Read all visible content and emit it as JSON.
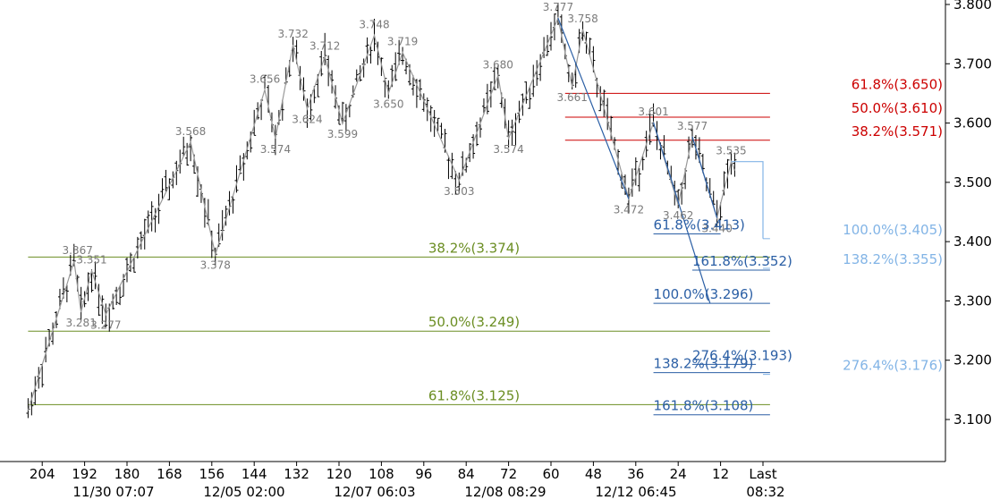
{
  "chart_data": {
    "type": "line",
    "title": "",
    "xlabel": "",
    "ylabel": "",
    "ylim": [
      3.02,
      3.82
    ],
    "y_ticks": [
      "3.100",
      "3.200",
      "3.300",
      "3.400",
      "3.500",
      "3.600",
      "3.700",
      "3.800"
    ],
    "x_ticks": [
      "204",
      "192",
      "180",
      "168",
      "156",
      "144",
      "132",
      "120",
      "108",
      "96",
      "84",
      "72",
      "60",
      "48",
      "36",
      "24",
      "12",
      "Last"
    ],
    "x_dates": [
      "11/30 07:07",
      "12/05 02:00",
      "12/07 06:03",
      "12/08 08:29",
      "12/12 06:45",
      "08:32"
    ],
    "bars_ago_range": [
      208,
      0
    ],
    "colors": {
      "bars": "#000000",
      "swing_line": "#999999",
      "olive": "#6b8e23",
      "red": "#cc0000",
      "blue": "#2b5fa5",
      "light_blue": "#82b4e6"
    },
    "zigzag": [
      {
        "bars_ago": 208,
        "price": 3.115
      },
      {
        "bars_ago": 195,
        "price": 3.367
      },
      {
        "bars_ago": 193,
        "price": 3.281
      },
      {
        "bars_ago": 190,
        "price": 3.351
      },
      {
        "bars_ago": 186,
        "price": 3.277
      },
      {
        "bars_ago": 162,
        "price": 3.568
      },
      {
        "bars_ago": 155,
        "price": 3.378
      },
      {
        "bars_ago": 141,
        "price": 3.656
      },
      {
        "bars_ago": 138,
        "price": 3.574
      },
      {
        "bars_ago": 133,
        "price": 3.732
      },
      {
        "bars_ago": 129,
        "price": 3.624
      },
      {
        "bars_ago": 124,
        "price": 3.712
      },
      {
        "bars_ago": 119,
        "price": 3.599
      },
      {
        "bars_ago": 110,
        "price": 3.748
      },
      {
        "bars_ago": 106,
        "price": 3.65
      },
      {
        "bars_ago": 102,
        "price": 3.719
      },
      {
        "bars_ago": 86,
        "price": 3.503
      },
      {
        "bars_ago": 75,
        "price": 3.68
      },
      {
        "bars_ago": 72,
        "price": 3.574
      },
      {
        "bars_ago": 58,
        "price": 3.777
      },
      {
        "bars_ago": 54,
        "price": 3.661
      },
      {
        "bars_ago": 51,
        "price": 3.758
      },
      {
        "bars_ago": 38,
        "price": 3.472
      },
      {
        "bars_ago": 31,
        "price": 3.601
      },
      {
        "bars_ago": 24,
        "price": 3.462
      },
      {
        "bars_ago": 20,
        "price": 3.577
      },
      {
        "bars_ago": 13,
        "price": 3.44
      },
      {
        "bars_ago": 9,
        "price": 3.535
      },
      {
        "bars_ago": 8,
        "price": 3.52
      }
    ],
    "swing_labels": [
      {
        "text": "3.367",
        "bars_ago": 194,
        "price": 3.367,
        "pos": "above"
      },
      {
        "text": "3.351",
        "bars_ago": 190,
        "price": 3.351,
        "pos": "above"
      },
      {
        "text": "3.281",
        "bars_ago": 193,
        "price": 3.281,
        "pos": "below"
      },
      {
        "text": "3.277",
        "bars_ago": 186,
        "price": 3.277,
        "pos": "below"
      },
      {
        "text": "3.568",
        "bars_ago": 162,
        "price": 3.568,
        "pos": "above"
      },
      {
        "text": "3.378",
        "bars_ago": 155,
        "price": 3.378,
        "pos": "below"
      },
      {
        "text": "3.656",
        "bars_ago": 141,
        "price": 3.656,
        "pos": "above"
      },
      {
        "text": "3.574",
        "bars_ago": 138,
        "price": 3.574,
        "pos": "below"
      },
      {
        "text": "3.732",
        "bars_ago": 133,
        "price": 3.732,
        "pos": "above"
      },
      {
        "text": "3.624",
        "bars_ago": 129,
        "price": 3.624,
        "pos": "below"
      },
      {
        "text": "3.712",
        "bars_ago": 124,
        "price": 3.712,
        "pos": "above"
      },
      {
        "text": "3.599",
        "bars_ago": 119,
        "price": 3.599,
        "pos": "below"
      },
      {
        "text": "3.748",
        "bars_ago": 110,
        "price": 3.748,
        "pos": "above"
      },
      {
        "text": "3.650",
        "bars_ago": 106,
        "price": 3.65,
        "pos": "below"
      },
      {
        "text": "3.719",
        "bars_ago": 102,
        "price": 3.719,
        "pos": "above"
      },
      {
        "text": "3.503",
        "bars_ago": 86,
        "price": 3.503,
        "pos": "below"
      },
      {
        "text": "3.680",
        "bars_ago": 75,
        "price": 3.68,
        "pos": "above"
      },
      {
        "text": "3.574",
        "bars_ago": 72,
        "price": 3.574,
        "pos": "below"
      },
      {
        "text": "3.777",
        "bars_ago": 58,
        "price": 3.777,
        "pos": "above"
      },
      {
        "text": "3.661",
        "bars_ago": 54,
        "price": 3.661,
        "pos": "below"
      },
      {
        "text": "3.758",
        "bars_ago": 51,
        "price": 3.758,
        "pos": "above"
      },
      {
        "text": "3.472",
        "bars_ago": 38,
        "price": 3.472,
        "pos": "below"
      },
      {
        "text": "3.601",
        "bars_ago": 31,
        "price": 3.601,
        "pos": "above"
      },
      {
        "text": "3.462",
        "bars_ago": 24,
        "price": 3.462,
        "pos": "below"
      },
      {
        "text": "3.577",
        "bars_ago": 20,
        "price": 3.577,
        "pos": "above"
      },
      {
        "text": "3.440",
        "bars_ago": 13,
        "price": 3.44,
        "pos": "below"
      },
      {
        "text": "3.535",
        "bars_ago": 9,
        "price": 3.535,
        "pos": "above"
      }
    ],
    "fib_levels": [
      {
        "label": "38.2%(3.374)",
        "price": 3.374,
        "color": "olive",
        "from_bars_ago": 208,
        "to_bars_ago": -2,
        "label_bars_ago": 94
      },
      {
        "label": "50.0%(3.249)",
        "price": 3.249,
        "color": "olive",
        "from_bars_ago": 208,
        "to_bars_ago": -2,
        "label_bars_ago": 94
      },
      {
        "label": "61.8%(3.125)",
        "price": 3.125,
        "color": "olive",
        "from_bars_ago": 208,
        "to_bars_ago": -2,
        "label_bars_ago": 94
      },
      {
        "label": "61.8%(3.650)",
        "price": 3.65,
        "color": "red",
        "from_bars_ago": 56,
        "to_bars_ago": -2,
        "label_bars_ago": 9
      },
      {
        "label": "50.0%(3.610)",
        "price": 3.61,
        "color": "red",
        "from_bars_ago": 56,
        "to_bars_ago": -2,
        "label_bars_ago": 9
      },
      {
        "label": "38.2%(3.571)",
        "price": 3.571,
        "color": "red",
        "from_bars_ago": 56,
        "to_bars_ago": -2,
        "label_bars_ago": 9
      },
      {
        "label": "61.8%(3.413)",
        "price": 3.413,
        "color": "blue",
        "from_bars_ago": 31,
        "to_bars_ago": 12,
        "label_bars_ago": 31
      },
      {
        "label": "100.0%(3.296)",
        "price": 3.296,
        "color": "blue",
        "from_bars_ago": 31,
        "to_bars_ago": -2,
        "label_bars_ago": 31
      },
      {
        "label": "138.2%(3.179)",
        "price": 3.179,
        "color": "blue",
        "from_bars_ago": 31,
        "to_bars_ago": -2,
        "label_bars_ago": 31
      },
      {
        "label": "161.8%(3.108)",
        "price": 3.108,
        "color": "blue",
        "from_bars_ago": 31,
        "to_bars_ago": -2,
        "label_bars_ago": 31
      },
      {
        "label": "161.8%(3.352)",
        "price": 3.352,
        "color": "blue",
        "from_bars_ago": 20,
        "to_bars_ago": -2,
        "label_bars_ago": 20
      },
      {
        "label": "276.4%(3.193)",
        "price": 3.193,
        "color": "blue",
        "from_bars_ago": 20,
        "to_bars_ago": 2,
        "label_bars_ago": 20
      },
      {
        "label": "100.0%(3.405)",
        "price": 3.405,
        "color": "light_blue",
        "from_bars_ago": 0,
        "to_bars_ago": -2,
        "label_bars_ago": -2
      },
      {
        "label": "138.2%(3.355)",
        "price": 3.355,
        "color": "light_blue",
        "from_bars_ago": 0,
        "to_bars_ago": -2,
        "label_bars_ago": -2
      },
      {
        "label": "276.4%(3.176)",
        "price": 3.176,
        "color": "light_blue",
        "from_bars_ago": 0,
        "to_bars_ago": -2,
        "label_bars_ago": -2
      }
    ],
    "projection_lines": [
      {
        "color": "blue",
        "points": [
          {
            "bars_ago": 58,
            "price": 3.777
          },
          {
            "bars_ago": 38,
            "price": 3.472
          }
        ]
      },
      {
        "color": "blue",
        "points": [
          {
            "bars_ago": 31,
            "price": 3.601
          },
          {
            "bars_ago": 15,
            "price": 3.296
          }
        ]
      },
      {
        "color": "blue",
        "points": [
          {
            "bars_ago": 20,
            "price": 3.577
          },
          {
            "bars_ago": 13,
            "price": 3.44
          }
        ]
      },
      {
        "color": "light_blue",
        "points": [
          {
            "bars_ago": 9,
            "price": 3.535
          },
          {
            "bars_ago": 0,
            "price": 3.535
          },
          {
            "bars_ago": 0,
            "price": 3.405
          }
        ]
      }
    ]
  }
}
